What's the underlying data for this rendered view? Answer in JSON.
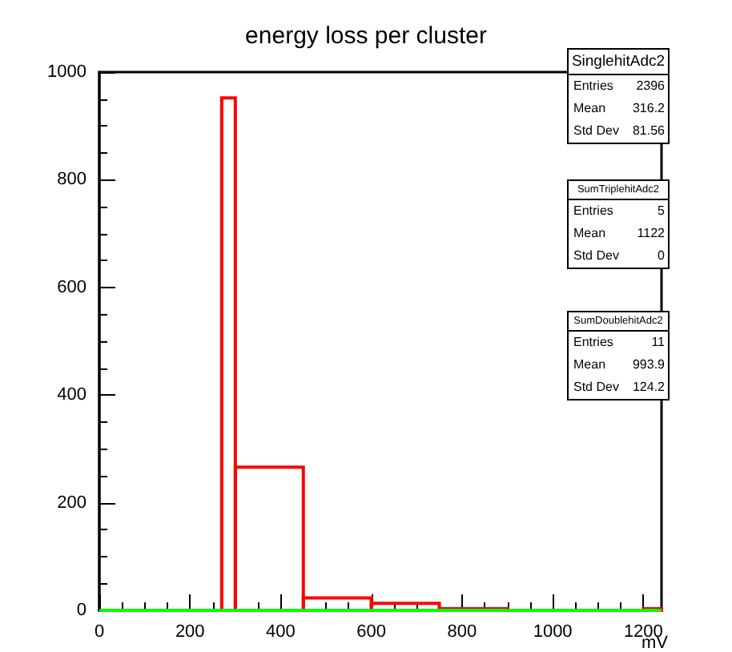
{
  "chart_data": {
    "type": "histogram",
    "title": "energy loss per cluster",
    "xlabel": "mV",
    "bins": [
      0,
      270,
      300,
      450,
      600,
      750,
      900,
      1200,
      1240
    ],
    "series": [
      {
        "color": "#ff0000",
        "values": [
          0,
          952,
          266,
          23,
          13,
          3,
          0,
          3
        ]
      },
      {
        "color": "#00ff00",
        "values": [
          0,
          0,
          0,
          0,
          0,
          0,
          0,
          0
        ]
      }
    ],
    "xlim": [
      0,
      1240
    ],
    "xticks": [
      0,
      200,
      400,
      600,
      800,
      1000,
      1200
    ],
    "ylim": [
      0,
      1000
    ],
    "yticks": [
      0,
      200,
      400,
      600,
      800,
      1000
    ],
    "grid": false,
    "annotations": [
      "SinglehitAdc2",
      "Entries 2396",
      "Mean 316.2",
      "Std Dev 81.56",
      "SumTriplehitAdc2",
      "Entries 5",
      "Mean 1122",
      "Std Dev 0",
      "SumDoublehitAdc2",
      "Entries 11",
      "Mean 993.9",
      "Std Dev 124.2"
    ]
  }
}
